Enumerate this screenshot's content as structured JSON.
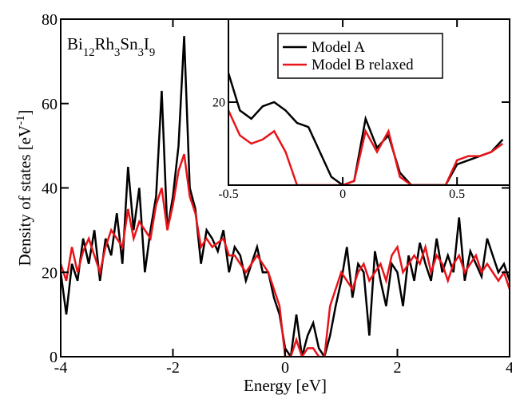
{
  "chart_data": [
    {
      "type": "line",
      "xlabel": "Energy [eV]",
      "ylabel": "Density of states [eV-1]",
      "annotation": "Bi12Rh3Sn3I9",
      "xlim": [
        -4,
        4
      ],
      "ylim": [
        0,
        80
      ],
      "xticks": [
        -4,
        -2,
        0,
        2,
        4
      ],
      "yticks": [
        0,
        20,
        40,
        60,
        80
      ],
      "x": [
        -4,
        -3.9,
        -3.8,
        -3.7,
        -3.6,
        -3.5,
        -3.4,
        -3.3,
        -3.2,
        -3.1,
        -3,
        -2.9,
        -2.8,
        -2.7,
        -2.6,
        -2.5,
        -2.4,
        -2.3,
        -2.2,
        -2.1,
        -2,
        -1.9,
        -1.8,
        -1.7,
        -1.6,
        -1.5,
        -1.4,
        -1.3,
        -1.2,
        -1.1,
        -1,
        -0.9,
        -0.8,
        -0.7,
        -0.6,
        -0.5,
        -0.4,
        -0.3,
        -0.2,
        -0.1,
        0,
        0.1,
        0.2,
        0.3,
        0.4,
        0.5,
        0.6,
        0.7,
        0.8,
        0.9,
        1,
        1.1,
        1.2,
        1.3,
        1.4,
        1.5,
        1.6,
        1.7,
        1.8,
        1.9,
        2,
        2.1,
        2.2,
        2.3,
        2.4,
        2.5,
        2.6,
        2.7,
        2.8,
        2.9,
        3,
        3.1,
        3.2,
        3.3,
        3.4,
        3.5,
        3.6,
        3.7,
        3.8,
        3.9,
        4
      ],
      "series": [
        {
          "name": "Model A",
          "color": "#000000",
          "values": [
            20,
            10,
            22,
            18,
            28,
            22,
            30,
            18,
            28,
            24,
            34,
            22,
            45,
            30,
            40,
            20,
            30,
            38,
            63,
            30,
            38,
            50,
            76,
            40,
            35,
            22,
            30,
            28,
            25,
            30,
            20,
            26,
            24,
            18,
            22,
            26,
            20,
            20,
            14,
            10,
            2,
            0,
            10,
            0,
            5,
            8,
            2,
            0,
            5,
            12,
            18,
            26,
            14,
            22,
            20,
            5,
            25,
            18,
            12,
            22,
            20,
            12,
            24,
            18,
            27,
            22,
            18,
            28,
            20,
            24,
            20,
            33,
            18,
            25,
            22,
            19,
            28,
            24,
            20,
            22,
            18
          ]
        },
        {
          "name": "Model B relaxed",
          "color": "#e8141a",
          "values": [
            22,
            18,
            26,
            20,
            25,
            28,
            24,
            20,
            26,
            30,
            28,
            26,
            35,
            28,
            32,
            30,
            28,
            36,
            40,
            30,
            36,
            44,
            48,
            38,
            34,
            26,
            28,
            26,
            27,
            28,
            24,
            24,
            22,
            20,
            22,
            24,
            22,
            20,
            16,
            12,
            0,
            0,
            4,
            0,
            2,
            2,
            0,
            0,
            12,
            16,
            20,
            18,
            16,
            20,
            22,
            18,
            20,
            22,
            18,
            24,
            26,
            20,
            22,
            24,
            22,
            26,
            20,
            24,
            22,
            18,
            22,
            24,
            20,
            22,
            24,
            20,
            22,
            20,
            18,
            20,
            16
          ]
        }
      ]
    },
    {
      "type": "line",
      "xlim": [
        -0.5,
        0.73
      ],
      "ylim": [
        0,
        40
      ],
      "xticks": [
        -0.5,
        0,
        0.5
      ],
      "yticks": [
        20
      ],
      "legend": "upper left",
      "x": [
        -0.5,
        -0.45,
        -0.4,
        -0.35,
        -0.3,
        -0.25,
        -0.2,
        -0.15,
        -0.1,
        -0.05,
        0,
        0.05,
        0.1,
        0.15,
        0.2,
        0.25,
        0.3,
        0.35,
        0.4,
        0.45,
        0.5,
        0.55,
        0.6,
        0.65,
        0.7
      ],
      "series": [
        {
          "name": "Model A",
          "color": "#000000",
          "values": [
            27,
            18,
            16,
            19,
            20,
            18,
            15,
            14,
            8,
            2,
            0,
            1,
            16,
            9,
            12,
            3,
            0,
            0,
            0,
            0,
            5,
            6,
            7,
            8,
            11
          ]
        },
        {
          "name": "Model B relaxed",
          "color": "#e8141a",
          "values": [
            18,
            12,
            10,
            11,
            13,
            8,
            0,
            0,
            0,
            0,
            0,
            1,
            13,
            8,
            13,
            2,
            0,
            0,
            0,
            0,
            6,
            7,
            7,
            8,
            10
          ]
        }
      ]
    }
  ]
}
